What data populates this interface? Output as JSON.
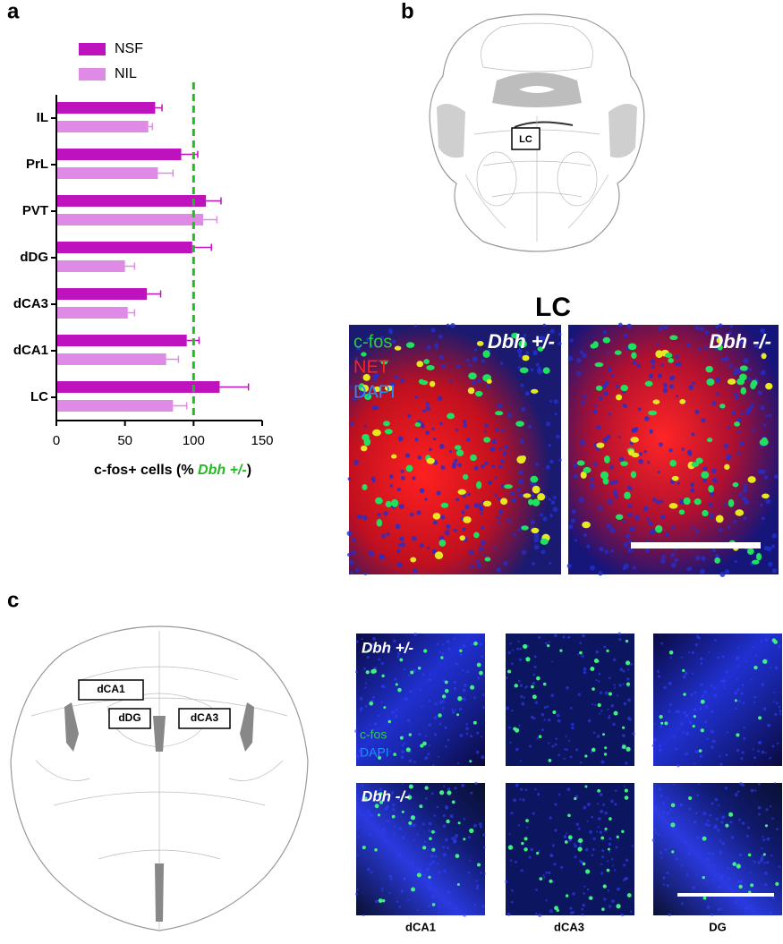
{
  "panel_labels": [
    "a",
    "b",
    "c"
  ],
  "chart_data": {
    "type": "hbar",
    "categories": [
      "IL",
      "PrL",
      "PVT",
      "dDG",
      "dCA3",
      "dCA1",
      "LC"
    ],
    "series": [
      {
        "name": "NSF",
        "color": "#bf12bf",
        "values": [
          72,
          91,
          109,
          99,
          66,
          95,
          119
        ],
        "errors": [
          5,
          12,
          11,
          14,
          10,
          9,
          21
        ]
      },
      {
        "name": "NIL",
        "color": "#df8ae6",
        "values": [
          67,
          74,
          107,
          50,
          52,
          80,
          85
        ],
        "errors": [
          3,
          11,
          10,
          7,
          5,
          9,
          10
        ]
      }
    ],
    "xlim": [
      0,
      150
    ],
    "xticks": [
      0,
      50,
      100,
      150
    ],
    "x_label": {
      "before": "c-fos+ cells (% ",
      "highlight": "Dbh +/-",
      "after": ")"
    },
    "reference_line": 100,
    "reference_color": "#22bb22",
    "legend": "top-left"
  },
  "panel_b": {
    "diagram_label": "LC",
    "title": "LC",
    "channels": [
      "c-fos",
      "NET",
      "DAPI"
    ],
    "genotypes": [
      "Dbh +/-",
      "Dbh -/-"
    ]
  },
  "panel_c": {
    "regions": [
      "dCA1",
      "dDG",
      "dCA3"
    ],
    "genotypes": [
      "Dbh +/-",
      "Dbh -/-"
    ],
    "channels": [
      "c-fos",
      "DAPI"
    ],
    "columns": [
      "dCA1",
      "dCA3",
      "DG"
    ]
  }
}
